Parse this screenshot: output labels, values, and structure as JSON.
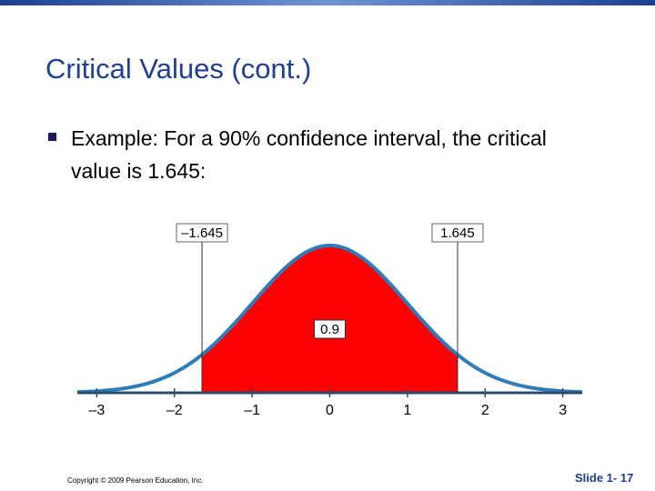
{
  "slide": {
    "title": "Critical Values (cont.)",
    "bullets": [
      "Example: For a 90% confidence interval, the critical value is 1.645:"
    ],
    "copyright": "Copyright © 2009 Pearson Education, Inc.",
    "slide_number": "Slide 1- 17"
  },
  "chart_data": {
    "type": "normal-area",
    "xlim": [
      -3.25,
      3.25
    ],
    "xticks": [
      {
        "value": -3,
        "label": "–3"
      },
      {
        "value": -2,
        "label": "–2"
      },
      {
        "value": -1,
        "label": "–1"
      },
      0,
      1,
      2,
      3
    ],
    "critical_values": [
      {
        "value": -1.645,
        "label": "–1.645"
      },
      1.645
    ],
    "area": 0.9,
    "color": "#ff0000",
    "curve_color": "#2e7db8"
  }
}
